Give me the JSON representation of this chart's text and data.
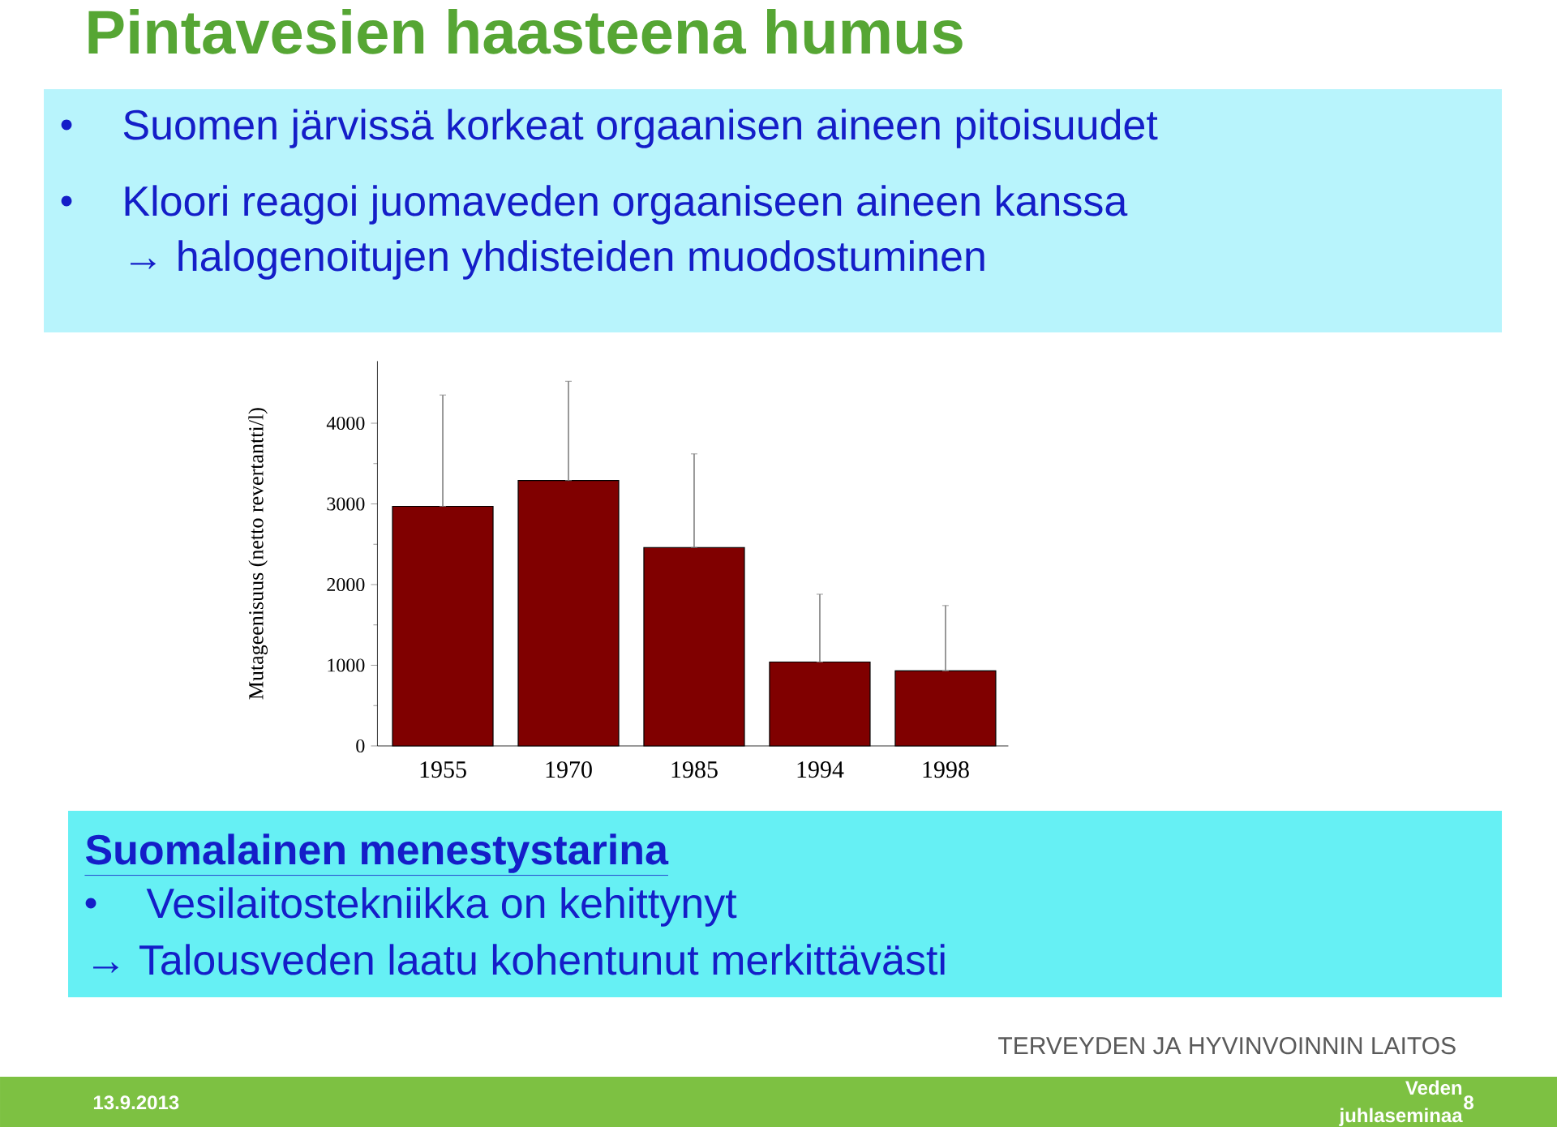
{
  "chart_data": {
    "type": "bar",
    "title": "Pintavesien haasteena humus",
    "ylabel": "Mutageenisuus (netto revertantti/l)",
    "categories": [
      "1955",
      "1970",
      "1985",
      "1994",
      "1998"
    ],
    "values": [
      2970,
      3290,
      2460,
      1040,
      930
    ],
    "errors": [
      [
        2970,
        4350
      ],
      [
        3290,
        4520
      ],
      [
        2460,
        3620
      ],
      [
        1040,
        1880
      ],
      [
        930,
        1740
      ]
    ],
    "color": "#800000",
    "ylim": [
      0,
      4770
    ],
    "yticks": [
      0,
      1000,
      2000,
      3000,
      4000
    ],
    "grid": false,
    "annotations": [
      "Suomen järvissä korkeat orgaanisen aineen pitoisuudet",
      "Kloori reagoi juomaveden orgaaniseen aineen kanssa",
      "→ halogenoitujen yhdisteiden muodostuminen",
      "Suomalainen menestystarina",
      "Vesilaitostekniikka on kehittynyt",
      "→ Talousveden laatu kohentunut merkittävästi",
      "TERVEYDEN JA HYVINVOINNIN LAITOS",
      "13.9.2013",
      "Veden",
      "juhlaseminaa",
      "8"
    ]
  }
}
